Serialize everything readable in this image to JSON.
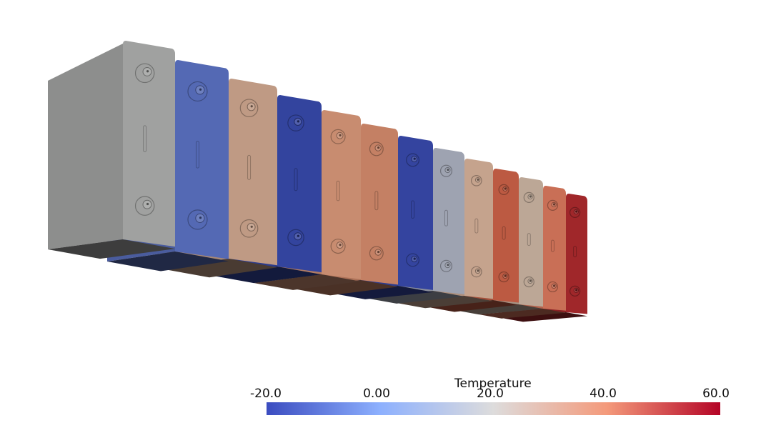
{
  "colorbar": {
    "title": "Temperature",
    "ticks": [
      "-20.0",
      "0.00",
      "20.0",
      "40.0",
      "60.0"
    ],
    "range": [
      -20,
      60
    ],
    "colormap": [
      "#3b4cc0",
      "#8db0fe",
      "#dddcdc",
      "#f49a7b",
      "#b40426"
    ]
  },
  "cells": [
    {
      "id": "cell-1",
      "color": "#a0a1a0",
      "temperature_shown_as_color": "grey (no data)"
    },
    {
      "id": "cell-2",
      "color": "#5469b4"
    },
    {
      "id": "cell-3",
      "color": "#bf9a84"
    },
    {
      "id": "cell-4",
      "color": "#33449e"
    },
    {
      "id": "cell-5",
      "color": "#c88c70"
    },
    {
      "id": "cell-6",
      "color": "#c48064"
    },
    {
      "id": "cell-7",
      "color": "#34449f"
    },
    {
      "id": "cell-8",
      "color": "#9ea3b1"
    },
    {
      "id": "cell-9",
      "color": "#c5a38d"
    },
    {
      "id": "cell-10",
      "color": "#bc5a42"
    },
    {
      "id": "cell-11",
      "color": "#bca796"
    },
    {
      "id": "cell-12",
      "color": "#c96f56"
    },
    {
      "id": "cell-13",
      "color": "#a0272a"
    }
  ]
}
